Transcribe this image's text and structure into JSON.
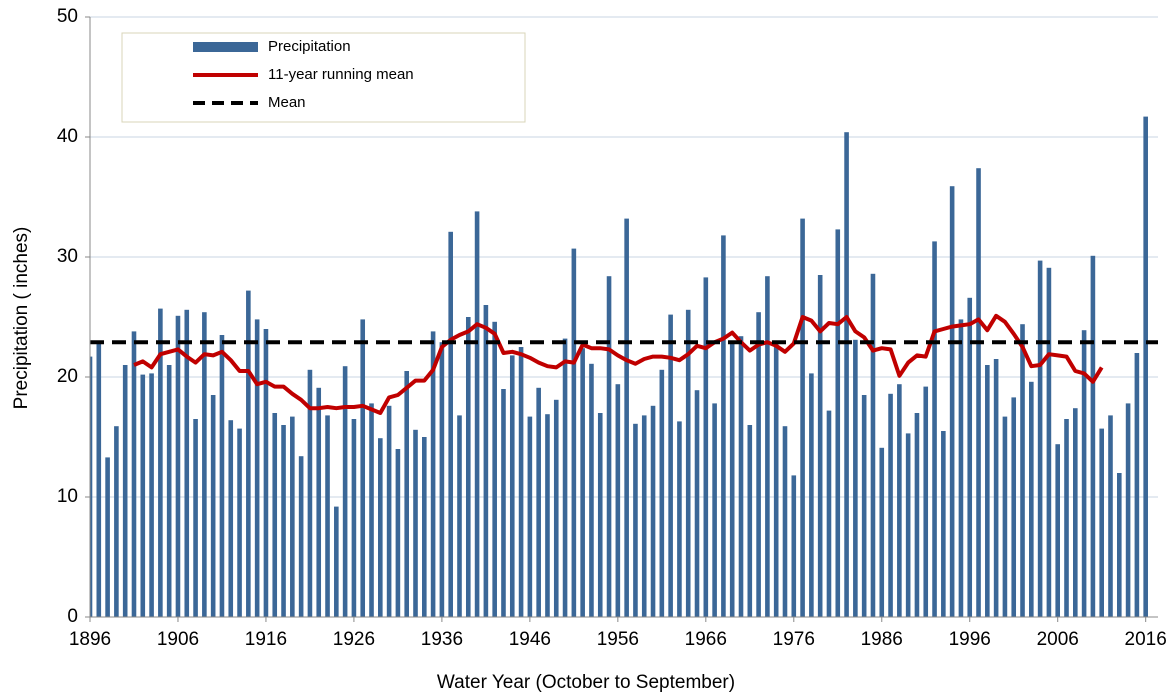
{
  "chart_data": {
    "type": "bar",
    "xlabel": "Water Year (October to September)",
    "ylabel": "Precipitation ( inches)",
    "x": [
      1896,
      1897,
      1898,
      1899,
      1900,
      1901,
      1902,
      1903,
      1904,
      1905,
      1906,
      1907,
      1908,
      1909,
      1910,
      1911,
      1912,
      1913,
      1914,
      1915,
      1916,
      1917,
      1918,
      1919,
      1920,
      1921,
      1922,
      1923,
      1924,
      1925,
      1926,
      1927,
      1928,
      1929,
      1930,
      1931,
      1932,
      1933,
      1934,
      1935,
      1936,
      1937,
      1938,
      1939,
      1940,
      1941,
      1942,
      1943,
      1944,
      1945,
      1946,
      1947,
      1948,
      1949,
      1950,
      1951,
      1952,
      1953,
      1954,
      1955,
      1956,
      1957,
      1958,
      1959,
      1960,
      1961,
      1962,
      1963,
      1964,
      1965,
      1966,
      1967,
      1968,
      1969,
      1970,
      1971,
      1972,
      1973,
      1974,
      1975,
      1976,
      1977,
      1978,
      1979,
      1980,
      1981,
      1982,
      1983,
      1984,
      1985,
      1986,
      1987,
      1988,
      1989,
      1990,
      1991,
      1992,
      1993,
      1994,
      1995,
      1996,
      1997,
      1998,
      1999,
      2000,
      2001,
      2002,
      2003,
      2004,
      2005,
      2006,
      2007,
      2008,
      2009,
      2010,
      2011,
      2012,
      2013,
      2014,
      2015,
      2016
    ],
    "series": [
      {
        "name": "Precipitation",
        "color": "#3b6797",
        "kind": "bar",
        "values": [
          21.7,
          22.9,
          13.3,
          15.9,
          21.0,
          23.8,
          20.2,
          20.3,
          25.7,
          21.0,
          25.1,
          25.6,
          16.5,
          25.4,
          18.5,
          23.5,
          16.4,
          15.7,
          27.2,
          24.8,
          24.0,
          17.0,
          16.0,
          16.7,
          13.4,
          20.6,
          19.1,
          16.8,
          9.2,
          20.9,
          16.5,
          24.8,
          17.8,
          14.9,
          17.6,
          14.0,
          20.5,
          15.6,
          15.0,
          23.8,
          22.9,
          32.1,
          16.8,
          25.0,
          33.8,
          26.0,
          24.6,
          19.0,
          21.8,
          22.5,
          16.7,
          19.1,
          16.9,
          18.1,
          23.2,
          30.7,
          22.4,
          21.1,
          17.0,
          28.4,
          19.4,
          33.2,
          16.1,
          16.8,
          17.6,
          20.6,
          25.2,
          16.3,
          25.6,
          18.9,
          28.3,
          17.8,
          31.8,
          22.8,
          23.4,
          16.0,
          25.4,
          28.4,
          22.8,
          15.9,
          11.8,
          33.2,
          20.3,
          28.5,
          17.2,
          32.3,
          40.4,
          23.1,
          18.5,
          28.6,
          14.1,
          18.6,
          19.4,
          15.3,
          17.0,
          19.2,
          31.3,
          15.5,
          35.9,
          24.8,
          26.6,
          37.4,
          21.0,
          21.5,
          16.7,
          18.3,
          24.4,
          19.6,
          29.7,
          29.1,
          14.4,
          16.5,
          17.4,
          23.9,
          30.1,
          15.7,
          16.8,
          12.0,
          17.8,
          22.0,
          41.7
        ]
      },
      {
        "name": "11-year running mean",
        "color": "#c00000",
        "kind": "line",
        "values": [
          null,
          null,
          null,
          null,
          null,
          21.0,
          21.3,
          20.8,
          21.9,
          22.1,
          22.3,
          21.7,
          21.2,
          21.9,
          21.8,
          22.1,
          21.4,
          20.5,
          20.5,
          19.4,
          19.6,
          19.2,
          19.2,
          18.6,
          18.1,
          17.4,
          17.4,
          17.5,
          17.4,
          17.5,
          17.5,
          17.6,
          17.3,
          17.0,
          18.3,
          18.5,
          19.1,
          19.7,
          19.7,
          20.6,
          22.5,
          23.1,
          23.5,
          23.8,
          24.4,
          24.1,
          23.6,
          22.0,
          22.1,
          21.9,
          21.6,
          21.2,
          20.9,
          20.8,
          21.3,
          21.2,
          22.7,
          22.4,
          22.4,
          22.3,
          21.8,
          21.4,
          21.1,
          21.5,
          21.7,
          21.7,
          21.6,
          21.4,
          21.9,
          22.6,
          22.4,
          22.9,
          23.2,
          23.7,
          22.9,
          22.2,
          22.7,
          22.9,
          22.6,
          22.1,
          22.8,
          25.0,
          24.7,
          23.8,
          24.5,
          24.4,
          25.0,
          23.8,
          23.3,
          22.2,
          22.4,
          22.3,
          20.1,
          21.2,
          21.8,
          21.7,
          23.8,
          24.0,
          24.2,
          24.3,
          24.4,
          24.8,
          23.9,
          25.1,
          24.6,
          23.6,
          22.5,
          20.9,
          21.0,
          21.9,
          21.8,
          21.7,
          20.5,
          20.3,
          19.6,
          20.8,
          null,
          null,
          null,
          null,
          null
        ]
      },
      {
        "name": "Mean",
        "color": "#000000",
        "kind": "hline",
        "value": 22.9
      }
    ],
    "xlim": [
      1896,
      2017.4
    ],
    "xticks": [
      1896,
      1906,
      1916,
      1926,
      1936,
      1946,
      1956,
      1966,
      1976,
      1986,
      1996,
      2006,
      2016
    ],
    "ylim": [
      0,
      50
    ],
    "yticks": [
      0,
      10,
      20,
      30,
      40,
      50
    ],
    "grid": true,
    "legend": "upper left"
  }
}
